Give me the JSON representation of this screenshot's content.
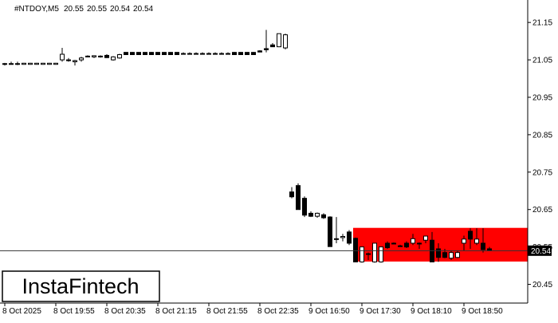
{
  "header": {
    "symbol": "#NTDOY,M5",
    "ohlc": [
      20.55,
      20.55,
      20.54,
      20.54
    ]
  },
  "logo": "InstaFintech",
  "chart_data": {
    "type": "candlestick",
    "categories": [
      "8 Oct 2025",
      null,
      null,
      null,
      null,
      null,
      null,
      null,
      "8 Oct 19:55",
      null,
      null,
      null,
      null,
      null,
      null,
      null,
      "8 Oct 20:35",
      null,
      null,
      null,
      null,
      null,
      null,
      null,
      "8 Oct 21:15",
      null,
      null,
      null,
      null,
      null,
      null,
      null,
      "8 Oct 21:55",
      null,
      null,
      null,
      null,
      null,
      null,
      null,
      "8 Oct 22:35",
      null,
      null,
      null,
      null,
      null,
      null,
      null,
      "9 Oct 16:50",
      null,
      null,
      null,
      null,
      null,
      null,
      null,
      "9 Oct 17:30",
      null,
      null,
      null,
      null,
      null,
      null,
      null,
      "9 Oct 18:10",
      null,
      null,
      null,
      null,
      null,
      null,
      null,
      "9 Oct 18:50",
      null,
      null,
      null,
      null
    ],
    "open": [
      21.04,
      21.04,
      21.04,
      21.038,
      21.038,
      21.038,
      21.038,
      21.038,
      21.038,
      21.05,
      21.05,
      21.045,
      21.05,
      21.06,
      21.058,
      21.06,
      21.062,
      21.05,
      21.055,
      21.07,
      21.07,
      21.07,
      21.07,
      21.07,
      21.07,
      21.07,
      21.07,
      21.07,
      21.066,
      21.066,
      21.066,
      21.066,
      21.066,
      21.066,
      21.066,
      21.066,
      21.07,
      21.07,
      21.07,
      21.07,
      21.074,
      21.08,
      21.09,
      21.085,
      21.082,
      20.697,
      20.714,
      20.68,
      20.64,
      20.632,
      20.636,
      20.63,
      20.57,
      20.575,
      20.59,
      20.573,
      20.51,
      20.532,
      20.51,
      20.51,
      20.56,
      20.56,
      20.553,
      20.56,
      20.56,
      20.56,
      20.568,
      20.568,
      20.545,
      20.535,
      20.52,
      20.522,
      20.56,
      20.592,
      20.56,
      20.56,
      20.545
    ],
    "high": [
      21.042,
      21.045,
      21.045,
      21.042,
      21.042,
      21.042,
      21.042,
      21.042,
      21.042,
      21.082,
      21.055,
      21.05,
      21.058,
      21.062,
      21.062,
      21.062,
      21.065,
      21.06,
      21.066,
      21.071,
      21.071,
      21.071,
      21.071,
      21.071,
      21.071,
      21.071,
      21.071,
      21.071,
      21.07,
      21.07,
      21.07,
      21.07,
      21.07,
      21.07,
      21.07,
      21.07,
      21.071,
      21.071,
      21.071,
      21.071,
      21.076,
      21.13,
      21.095,
      21.12,
      21.12,
      20.71,
      20.72,
      20.685,
      20.645,
      20.642,
      20.64,
      20.632,
      20.63,
      20.585,
      20.595,
      20.575,
      20.55,
      20.535,
      20.56,
      20.55,
      20.565,
      20.562,
      20.556,
      20.565,
      20.585,
      20.562,
      20.58,
      20.59,
      20.56,
      20.545,
      20.54,
      20.54,
      20.58,
      20.6,
      20.6,
      20.6,
      20.55
    ],
    "low": [
      21.035,
      21.038,
      21.036,
      21.037,
      21.037,
      21.037,
      21.037,
      21.037,
      21.037,
      21.045,
      21.045,
      21.035,
      21.045,
      21.058,
      21.055,
      21.056,
      21.055,
      21.048,
      21.053,
      21.063,
      21.063,
      21.063,
      21.063,
      21.063,
      21.063,
      21.063,
      21.063,
      21.063,
      21.064,
      21.064,
      21.064,
      21.064,
      21.064,
      21.064,
      21.064,
      21.064,
      21.063,
      21.063,
      21.063,
      21.063,
      21.07,
      21.07,
      21.085,
      21.084,
      21.078,
      20.68,
      20.65,
      20.63,
      20.63,
      20.628,
      20.625,
      20.55,
      20.56,
      20.565,
      20.555,
      20.51,
      20.508,
      20.515,
      20.508,
      20.508,
      20.545,
      20.557,
      20.55,
      20.547,
      20.555,
      20.545,
      20.56,
      20.51,
      20.51,
      20.52,
      20.515,
      20.52,
      20.54,
      20.545,
      20.555,
      20.535,
      20.54
    ],
    "close": [
      21.04,
      21.04,
      21.04,
      21.041,
      21.041,
      21.041,
      21.041,
      21.041,
      21.041,
      21.065,
      21.05,
      21.048,
      21.055,
      21.06,
      21.061,
      21.058,
      21.056,
      21.058,
      21.064,
      21.064,
      21.064,
      21.064,
      21.064,
      21.064,
      21.064,
      21.064,
      21.064,
      21.064,
      21.067,
      21.067,
      21.067,
      21.067,
      21.067,
      21.067,
      21.067,
      21.067,
      21.064,
      21.064,
      21.064,
      21.064,
      21.071,
      21.077,
      21.085,
      21.12,
      21.117,
      20.684,
      20.65,
      20.635,
      20.632,
      20.64,
      20.628,
      20.551,
      20.572,
      20.578,
      20.56,
      20.51,
      20.55,
      20.53,
      20.56,
      20.55,
      20.548,
      20.56,
      20.553,
      20.55,
      20.572,
      20.56,
      20.579,
      20.51,
      20.522,
      20.522,
      20.535,
      20.535,
      20.571,
      20.571,
      20.571,
      20.543,
      20.54
    ],
    "ylim": [
      20.4,
      21.21
    ],
    "yticks": [
      21.15,
      21.05,
      20.95,
      20.85,
      20.75,
      20.65,
      20.55,
      20.45
    ],
    "last_price": 20.54,
    "zone_high": 20.601,
    "zone_low": 20.511,
    "zone_color": "#ff0000",
    "up_color": "#ffffff",
    "down_color": "#000000"
  }
}
